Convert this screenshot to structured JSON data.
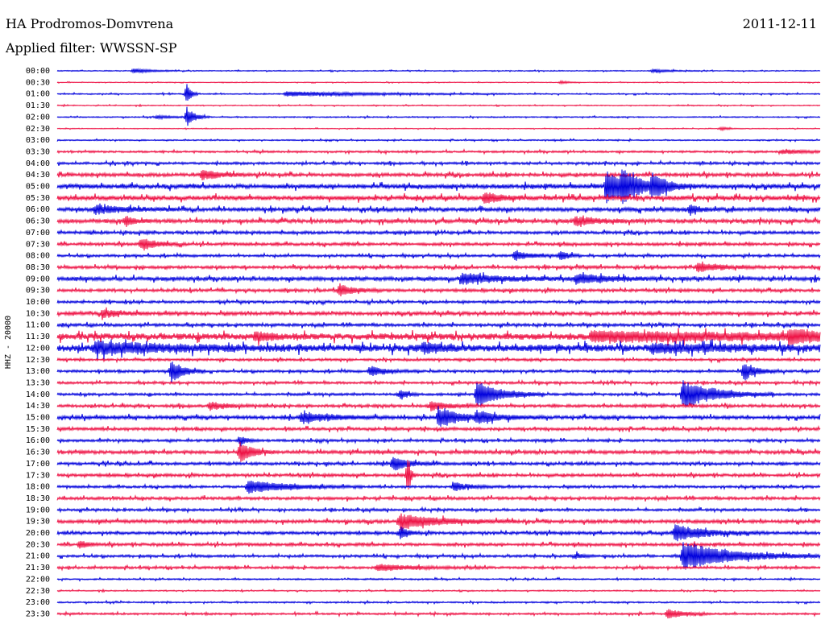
{
  "header": {
    "station": "HA Prodromos-Domvrena",
    "filter": "Applied filter: WWSSN-SP",
    "date": "2011-12-11"
  },
  "chart_data": {
    "type": "line",
    "title": "HA Prodromos-Domvrena",
    "subtitle": "Applied filter: WWSSN-SP",
    "ylabel": "HHZ - 20000",
    "row_labels": [
      "00:00",
      "00:30",
      "01:00",
      "01:30",
      "02:00",
      "02:30",
      "03:00",
      "03:30",
      "04:00",
      "04:30",
      "05:00",
      "05:30",
      "06:00",
      "06:30",
      "07:00",
      "07:30",
      "08:00",
      "08:30",
      "09:00",
      "09:30",
      "10:00",
      "10:30",
      "11:00",
      "11:30",
      "12:00",
      "12:30",
      "13:00",
      "13:30",
      "14:00",
      "14:30",
      "15:00",
      "15:30",
      "16:00",
      "16:30",
      "17:00",
      "17:30",
      "18:00",
      "18:30",
      "19:00",
      "19:30",
      "20:00",
      "20:30",
      "21:00",
      "21:30",
      "22:00",
      "22:30",
      "23:00",
      "23:30"
    ],
    "colors": [
      "#0000dd",
      "#ee1144"
    ],
    "noise_level": [
      0.4,
      0.3,
      0.5,
      0.4,
      0.5,
      0.3,
      0.5,
      0.8,
      1.0,
      1.4,
      1.8,
      1.8,
      1.6,
      1.6,
      1.2,
      1.2,
      1.0,
      1.2,
      1.6,
      1.2,
      1.0,
      1.4,
      1.2,
      2.6,
      2.8,
      1.0,
      1.0,
      1.0,
      1.0,
      1.2,
      1.4,
      1.2,
      1.0,
      1.4,
      1.2,
      1.2,
      1.0,
      1.2,
      1.0,
      1.4,
      1.2,
      1.2,
      1.0,
      1.0,
      0.6,
      0.5,
      0.6,
      0.8
    ],
    "events": [
      {
        "row": 0,
        "x": 0.1,
        "amp": 3,
        "dur": 0.02
      },
      {
        "row": 0,
        "x": 0.78,
        "amp": 2,
        "dur": 0.02
      },
      {
        "row": 1,
        "x": 0.66,
        "amp": 2,
        "dur": 0.01
      },
      {
        "row": 2,
        "x": 0.17,
        "amp": 14,
        "dur": 0.005
      },
      {
        "row": 2,
        "x": 0.3,
        "amp": 3,
        "dur": 0.1
      },
      {
        "row": 4,
        "x": 0.13,
        "amp": 2,
        "dur": 0.02
      },
      {
        "row": 4,
        "x": 0.17,
        "amp": 12,
        "dur": 0.01
      },
      {
        "row": 5,
        "x": 0.87,
        "amp": 2,
        "dur": 0.01
      },
      {
        "row": 7,
        "x": 0.95,
        "amp": 3,
        "dur": 0.03
      },
      {
        "row": 9,
        "x": 0.19,
        "amp": 6,
        "dur": 0.02
      },
      {
        "row": 10,
        "x": 0.72,
        "amp": 20,
        "dur": 0.03
      },
      {
        "row": 10,
        "x": 0.74,
        "amp": 14,
        "dur": 0.02
      },
      {
        "row": 10,
        "x": 0.78,
        "amp": 12,
        "dur": 0.02
      },
      {
        "row": 11,
        "x": 0.56,
        "amp": 7,
        "dur": 0.02
      },
      {
        "row": 12,
        "x": 0.05,
        "amp": 5,
        "dur": 0.04
      },
      {
        "row": 12,
        "x": 0.83,
        "amp": 6,
        "dur": 0.01
      },
      {
        "row": 13,
        "x": 0.09,
        "amp": 6,
        "dur": 0.01
      },
      {
        "row": 13,
        "x": 0.68,
        "amp": 5,
        "dur": 0.03
      },
      {
        "row": 15,
        "x": 0.11,
        "amp": 7,
        "dur": 0.02
      },
      {
        "row": 16,
        "x": 0.6,
        "amp": 6,
        "dur": 0.02
      },
      {
        "row": 16,
        "x": 0.66,
        "amp": 6,
        "dur": 0.01
      },
      {
        "row": 17,
        "x": 0.84,
        "amp": 6,
        "dur": 0.03
      },
      {
        "row": 18,
        "x": 0.53,
        "amp": 6,
        "dur": 0.05
      },
      {
        "row": 18,
        "x": 0.68,
        "amp": 6,
        "dur": 0.04
      },
      {
        "row": 19,
        "x": 0.37,
        "amp": 7,
        "dur": 0.02
      },
      {
        "row": 21,
        "x": 0.06,
        "amp": 5,
        "dur": 0.02
      },
      {
        "row": 23,
        "x": 0.26,
        "amp": 5,
        "dur": 0.02
      },
      {
        "row": 23,
        "x": 0.7,
        "amp": 5,
        "dur": 0.3
      },
      {
        "row": 23,
        "x": 0.96,
        "amp": 6,
        "dur": 0.04
      },
      {
        "row": 24,
        "x": 0.05,
        "amp": 6,
        "dur": 0.1
      },
      {
        "row": 24,
        "x": 0.48,
        "amp": 6,
        "dur": 0.02
      },
      {
        "row": 24,
        "x": 0.78,
        "amp": 4,
        "dur": 0.1
      },
      {
        "row": 26,
        "x": 0.15,
        "amp": 14,
        "dur": 0.015
      },
      {
        "row": 26,
        "x": 0.41,
        "amp": 6,
        "dur": 0.02
      },
      {
        "row": 26,
        "x": 0.9,
        "amp": 12,
        "dur": 0.015
      },
      {
        "row": 28,
        "x": 0.55,
        "amp": 16,
        "dur": 0.03
      },
      {
        "row": 28,
        "x": 0.82,
        "amp": 18,
        "dur": 0.04
      },
      {
        "row": 28,
        "x": 0.45,
        "amp": 5,
        "dur": 0.01
      },
      {
        "row": 29,
        "x": 0.2,
        "amp": 5,
        "dur": 0.02
      },
      {
        "row": 29,
        "x": 0.49,
        "amp": 6,
        "dur": 0.02
      },
      {
        "row": 30,
        "x": 0.32,
        "amp": 6,
        "dur": 0.04
      },
      {
        "row": 30,
        "x": 0.5,
        "amp": 13,
        "dur": 0.025
      },
      {
        "row": 30,
        "x": 0.55,
        "amp": 7,
        "dur": 0.03
      },
      {
        "row": 32,
        "x": 0.24,
        "amp": 5,
        "dur": 0.01
      },
      {
        "row": 33,
        "x": 0.24,
        "amp": 12,
        "dur": 0.015
      },
      {
        "row": 34,
        "x": 0.44,
        "amp": 9,
        "dur": 0.02
      },
      {
        "row": 35,
        "x": 0.46,
        "amp": 28,
        "dur": 0.003
      },
      {
        "row": 36,
        "x": 0.25,
        "amp": 8,
        "dur": 0.05
      },
      {
        "row": 36,
        "x": 0.52,
        "amp": 5,
        "dur": 0.02
      },
      {
        "row": 39,
        "x": 0.45,
        "amp": 9,
        "dur": 0.05
      },
      {
        "row": 40,
        "x": 0.45,
        "amp": 7,
        "dur": 0.01
      },
      {
        "row": 40,
        "x": 0.81,
        "amp": 10,
        "dur": 0.04
      },
      {
        "row": 41,
        "x": 0.03,
        "amp": 5,
        "dur": 0.01
      },
      {
        "row": 42,
        "x": 0.82,
        "amp": 18,
        "dur": 0.06
      },
      {
        "row": 42,
        "x": 0.68,
        "amp": 3,
        "dur": 0.01
      },
      {
        "row": 43,
        "x": 0.42,
        "amp": 4,
        "dur": 0.05
      },
      {
        "row": 47,
        "x": 0.8,
        "amp": 6,
        "dur": 0.02
      }
    ]
  }
}
